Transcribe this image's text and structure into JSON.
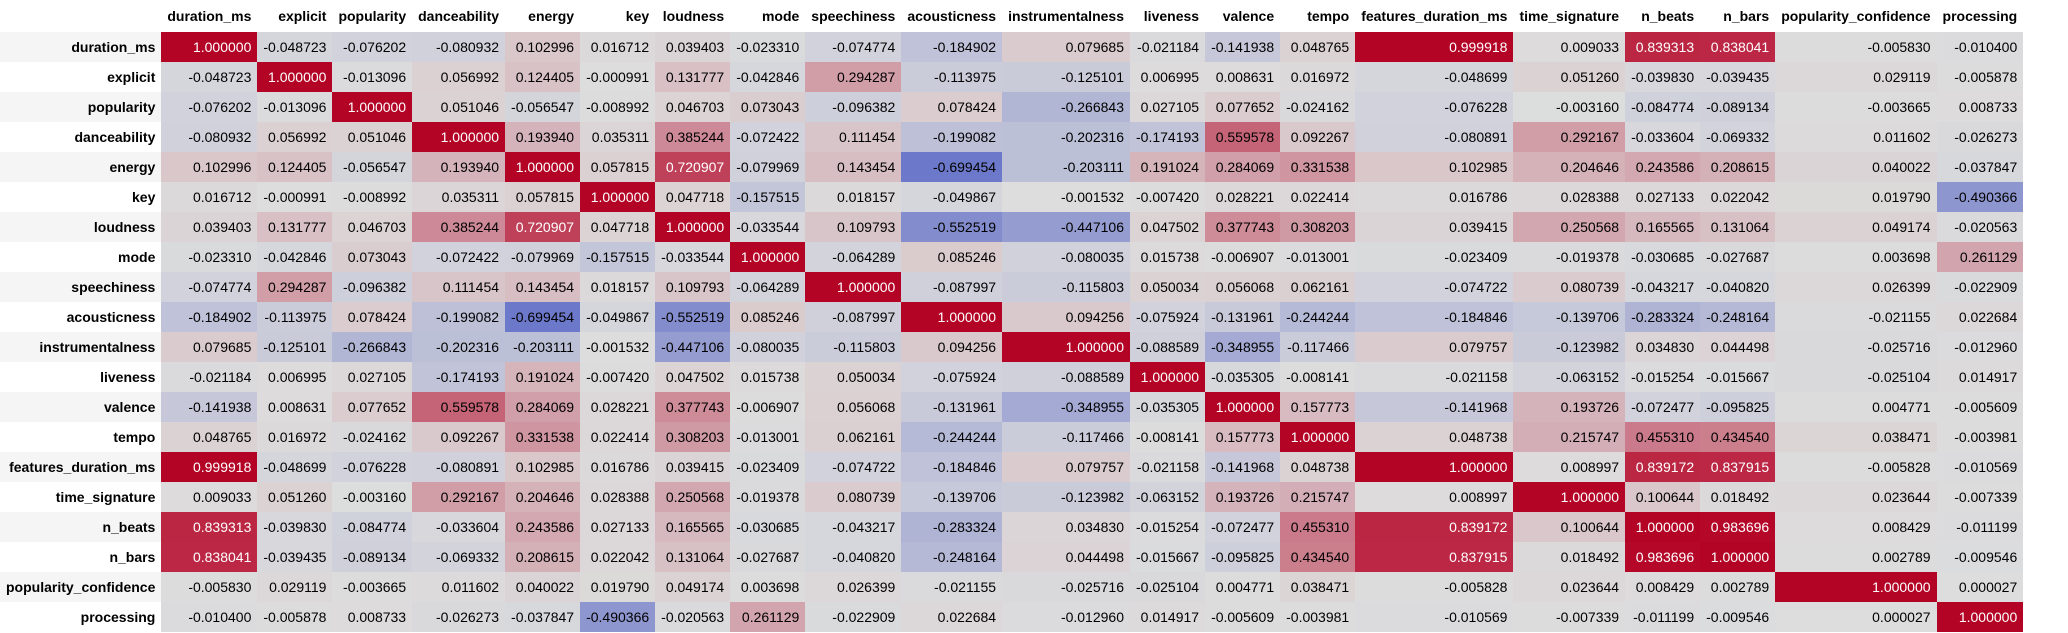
{
  "columns": [
    "duration_ms",
    "explicit",
    "popularity",
    "danceability",
    "energy",
    "key",
    "loudness",
    "mode",
    "speechiness",
    "acousticness",
    "instrumentalness",
    "liveness",
    "valence",
    "tempo",
    "features_duration_ms",
    "time_signature",
    "n_beats",
    "n_bars",
    "popularity_confidence",
    "processing"
  ],
  "rows": [
    {
      "label": "duration_ms",
      "values": [
        "1.000000",
        "-0.048723",
        "-0.076202",
        "-0.080932",
        "0.102996",
        "0.016712",
        "0.039403",
        "-0.023310",
        "-0.074774",
        "-0.184902",
        "0.079685",
        "-0.021184",
        "-0.141938",
        "0.048765",
        "0.999918",
        "0.009033",
        "0.839313",
        "0.838041",
        "-0.005830",
        "-0.010400"
      ]
    },
    {
      "label": "explicit",
      "values": [
        "-0.048723",
        "1.000000",
        "-0.013096",
        "0.056992",
        "0.124405",
        "-0.000991",
        "0.131777",
        "-0.042846",
        "0.294287",
        "-0.113975",
        "-0.125101",
        "0.006995",
        "0.008631",
        "0.016972",
        "-0.048699",
        "0.051260",
        "-0.039830",
        "-0.039435",
        "0.029119",
        "-0.005878"
      ]
    },
    {
      "label": "popularity",
      "values": [
        "-0.076202",
        "-0.013096",
        "1.000000",
        "0.051046",
        "-0.056547",
        "-0.008992",
        "0.046703",
        "0.073043",
        "-0.096382",
        "0.078424",
        "-0.266843",
        "0.027105",
        "0.077652",
        "-0.024162",
        "-0.076228",
        "-0.003160",
        "-0.084774",
        "-0.089134",
        "-0.003665",
        "0.008733"
      ]
    },
    {
      "label": "danceability",
      "values": [
        "-0.080932",
        "0.056992",
        "0.051046",
        "1.000000",
        "0.193940",
        "0.035311",
        "0.385244",
        "-0.072422",
        "0.111454",
        "-0.199082",
        "-0.202316",
        "-0.174193",
        "0.559578",
        "0.092267",
        "-0.080891",
        "0.292167",
        "-0.033604",
        "-0.069332",
        "0.011602",
        "-0.026273"
      ]
    },
    {
      "label": "energy",
      "values": [
        "0.102996",
        "0.124405",
        "-0.056547",
        "0.193940",
        "1.000000",
        "0.057815",
        "0.720907",
        "-0.079969",
        "0.143454",
        "-0.699454",
        "-0.203111",
        "0.191024",
        "0.284069",
        "0.331538",
        "0.102985",
        "0.204646",
        "0.243586",
        "0.208615",
        "0.040022",
        "-0.037847"
      ]
    },
    {
      "label": "key",
      "values": [
        "0.016712",
        "-0.000991",
        "-0.008992",
        "0.035311",
        "0.057815",
        "1.000000",
        "0.047718",
        "-0.157515",
        "0.018157",
        "-0.049867",
        "-0.001532",
        "-0.007420",
        "0.028221",
        "0.022414",
        "0.016786",
        "0.028388",
        "0.027133",
        "0.022042",
        "0.019790",
        "-0.490366"
      ]
    },
    {
      "label": "loudness",
      "values": [
        "0.039403",
        "0.131777",
        "0.046703",
        "0.385244",
        "0.720907",
        "0.047718",
        "1.000000",
        "-0.033544",
        "0.109793",
        "-0.552519",
        "-0.447106",
        "0.047502",
        "0.377743",
        "0.308203",
        "0.039415",
        "0.250568",
        "0.165565",
        "0.131064",
        "0.049174",
        "-0.020563"
      ]
    },
    {
      "label": "mode",
      "values": [
        "-0.023310",
        "-0.042846",
        "0.073043",
        "-0.072422",
        "-0.079969",
        "-0.157515",
        "-0.033544",
        "1.000000",
        "-0.064289",
        "0.085246",
        "-0.080035",
        "0.015738",
        "-0.006907",
        "-0.013001",
        "-0.023409",
        "-0.019378",
        "-0.030685",
        "-0.027687",
        "0.003698",
        "0.261129"
      ]
    },
    {
      "label": "speechiness",
      "values": [
        "-0.074774",
        "0.294287",
        "-0.096382",
        "0.111454",
        "0.143454",
        "0.018157",
        "0.109793",
        "-0.064289",
        "1.000000",
        "-0.087997",
        "-0.115803",
        "0.050034",
        "0.056068",
        "0.062161",
        "-0.074722",
        "0.080739",
        "-0.043217",
        "-0.040820",
        "0.026399",
        "-0.022909"
      ]
    },
    {
      "label": "acousticness",
      "values": [
        "-0.184902",
        "-0.113975",
        "0.078424",
        "-0.199082",
        "-0.699454",
        "-0.049867",
        "-0.552519",
        "0.085246",
        "-0.087997",
        "1.000000",
        "0.094256",
        "-0.075924",
        "-0.131961",
        "-0.244244",
        "-0.184846",
        "-0.139706",
        "-0.283324",
        "-0.248164",
        "-0.021155",
        "0.022684"
      ]
    },
    {
      "label": "instrumentalness",
      "values": [
        "0.079685",
        "-0.125101",
        "-0.266843",
        "-0.202316",
        "-0.203111",
        "-0.001532",
        "-0.447106",
        "-0.080035",
        "-0.115803",
        "0.094256",
        "1.000000",
        "-0.088589",
        "-0.348955",
        "-0.117466",
        "0.079757",
        "-0.123982",
        "0.034830",
        "0.044498",
        "-0.025716",
        "-0.012960"
      ]
    },
    {
      "label": "liveness",
      "values": [
        "-0.021184",
        "0.006995",
        "0.027105",
        "-0.174193",
        "0.191024",
        "-0.007420",
        "0.047502",
        "0.015738",
        "0.050034",
        "-0.075924",
        "-0.088589",
        "1.000000",
        "-0.035305",
        "-0.008141",
        "-0.021158",
        "-0.063152",
        "-0.015254",
        "-0.015667",
        "-0.025104",
        "0.014917"
      ]
    },
    {
      "label": "valence",
      "values": [
        "-0.141938",
        "0.008631",
        "0.077652",
        "0.559578",
        "0.284069",
        "0.028221",
        "0.377743",
        "-0.006907",
        "0.056068",
        "-0.131961",
        "-0.348955",
        "-0.035305",
        "1.000000",
        "0.157773",
        "-0.141968",
        "0.193726",
        "-0.072477",
        "-0.095825",
        "0.004771",
        "-0.005609"
      ]
    },
    {
      "label": "tempo",
      "values": [
        "0.048765",
        "0.016972",
        "-0.024162",
        "0.092267",
        "0.331538",
        "0.022414",
        "0.308203",
        "-0.013001",
        "0.062161",
        "-0.244244",
        "-0.117466",
        "-0.008141",
        "0.157773",
        "1.000000",
        "0.048738",
        "0.215747",
        "0.455310",
        "0.434540",
        "0.038471",
        "-0.003981"
      ]
    },
    {
      "label": "features_duration_ms",
      "values": [
        "0.999918",
        "-0.048699",
        "-0.076228",
        "-0.080891",
        "0.102985",
        "0.016786",
        "0.039415",
        "-0.023409",
        "-0.074722",
        "-0.184846",
        "0.079757",
        "-0.021158",
        "-0.141968",
        "0.048738",
        "1.000000",
        "0.008997",
        "0.839172",
        "0.837915",
        "-0.005828",
        "-0.010569"
      ]
    },
    {
      "label": "time_signature",
      "values": [
        "0.009033",
        "0.051260",
        "-0.003160",
        "0.292167",
        "0.204646",
        "0.028388",
        "0.250568",
        "-0.019378",
        "0.080739",
        "-0.139706",
        "-0.123982",
        "-0.063152",
        "0.193726",
        "0.215747",
        "0.008997",
        "1.000000",
        "0.100644",
        "0.018492",
        "0.023644",
        "-0.007339"
      ]
    },
    {
      "label": "n_beats",
      "values": [
        "0.839313",
        "-0.039830",
        "-0.084774",
        "-0.033604",
        "0.243586",
        "0.027133",
        "0.165565",
        "-0.030685",
        "-0.043217",
        "-0.283324",
        "0.034830",
        "-0.015254",
        "-0.072477",
        "0.455310",
        "0.839172",
        "0.100644",
        "1.000000",
        "0.983696",
        "0.008429",
        "-0.011199"
      ]
    },
    {
      "label": "n_bars",
      "values": [
        "0.838041",
        "-0.039435",
        "-0.089134",
        "-0.069332",
        "0.208615",
        "0.022042",
        "0.131064",
        "-0.027687",
        "-0.040820",
        "-0.248164",
        "0.044498",
        "-0.015667",
        "-0.095825",
        "0.434540",
        "0.837915",
        "0.018492",
        "0.983696",
        "1.000000",
        "0.002789",
        "-0.009546"
      ]
    },
    {
      "label": "popularity_confidence",
      "values": [
        "-0.005830",
        "0.029119",
        "-0.003665",
        "0.011602",
        "0.040022",
        "0.019790",
        "0.049174",
        "0.003698",
        "0.026399",
        "-0.021155",
        "-0.025716",
        "-0.025104",
        "0.004771",
        "0.038471",
        "-0.005828",
        "0.023644",
        "0.008429",
        "0.002789",
        "1.000000",
        "0.000027"
      ]
    },
    {
      "label": "processing",
      "values": [
        "-0.010400",
        "-0.005878",
        "0.008733",
        "-0.026273",
        "-0.037847",
        "-0.490366",
        "-0.020563",
        "0.261129",
        "-0.022909",
        "0.022684",
        "-0.012960",
        "0.014917",
        "-0.005609",
        "-0.003981",
        "-0.010569",
        "-0.007339",
        "-0.011199",
        "-0.009546",
        "0.000027",
        "1.000000"
      ]
    }
  ],
  "colormap": {
    "negative_end": "#3b4cc0",
    "neutral": "#dddddd",
    "positive_end": "#b40426",
    "range": [
      -1,
      1
    ]
  }
}
